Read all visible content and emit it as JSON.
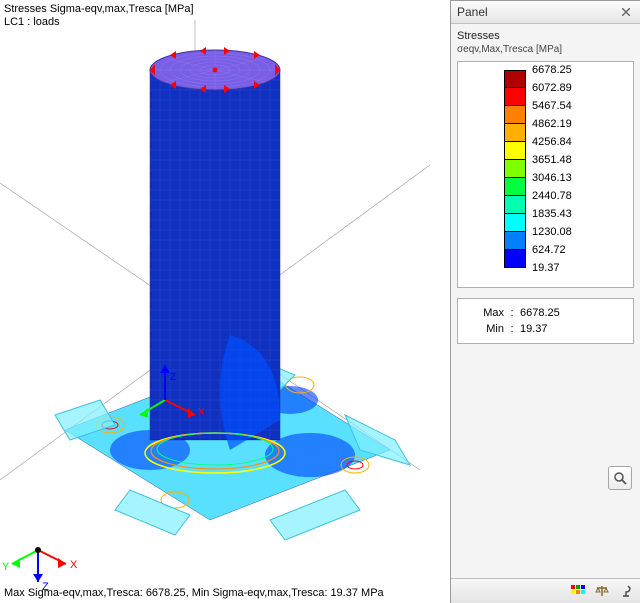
{
  "viewport": {
    "title": "Stresses Sigma-eqv,max,Tresca [MPa]",
    "load_case": "LC1 : loads",
    "status": "Max Sigma-eqv,max,Tresca: 6678.25, Min Sigma-eqv,max,Tresca: 19.37 MPa",
    "axes": {
      "x_color": "#ff0000",
      "y_color": "#00ff00",
      "z_color": "#0000ff"
    }
  },
  "panel": {
    "header": "Panel",
    "section_title": "Stresses",
    "subtitle": "σeqv,Max,Tresca [MPa]",
    "legend": {
      "colors": [
        "#b10000",
        "#ff0000",
        "#ff7f00",
        "#ffb000",
        "#ffff00",
        "#7fff00",
        "#00ff40",
        "#00ffb0",
        "#00ffff",
        "#0080ff",
        "#0000ff"
      ],
      "labels": [
        "6678.25",
        "6072.89",
        "5467.54",
        "4862.19",
        "4256.84",
        "3651.48",
        "3046.13",
        "2440.78",
        "1835.43",
        "1230.08",
        "624.72",
        "19.37"
      ]
    },
    "stats": {
      "max_label": "Max",
      "max_value": "6678.25",
      "min_label": "Min",
      "min_value": "19.37"
    }
  }
}
